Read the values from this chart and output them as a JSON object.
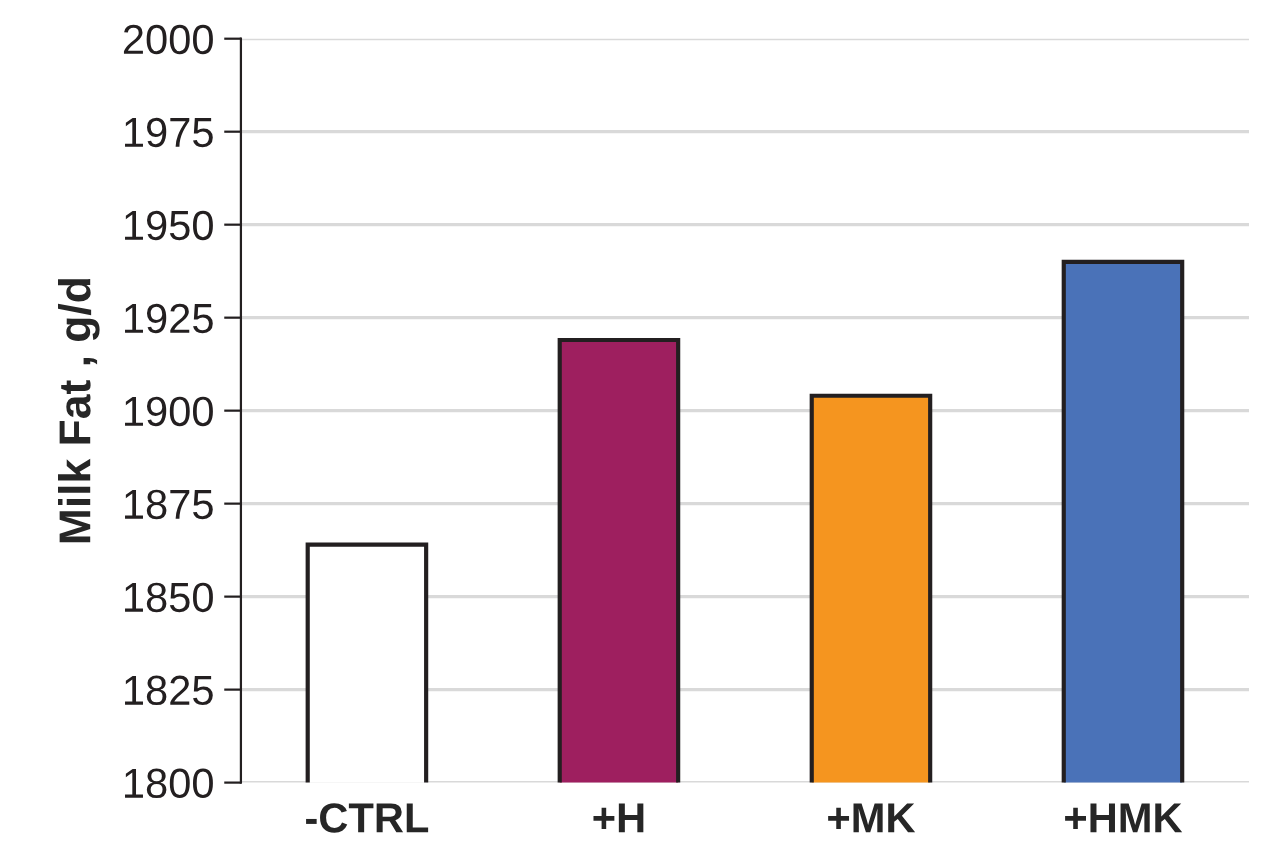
{
  "chart_data": {
    "type": "bar",
    "ylabel": "Milk Fat , g/d",
    "categories": [
      "-CTRL",
      "+H",
      "+MK",
      "+HMK"
    ],
    "values": [
      1864,
      1919,
      1904,
      1940
    ],
    "colors": [
      "#ffffff",
      "#9e1f5f",
      "#f5951f",
      "#4a72b8"
    ],
    "ylim": [
      1800,
      2000
    ],
    "yticks": [
      1800,
      1825,
      1850,
      1875,
      1900,
      1925,
      1950,
      1975,
      2000
    ],
    "grid": "y",
    "legend": false
  }
}
